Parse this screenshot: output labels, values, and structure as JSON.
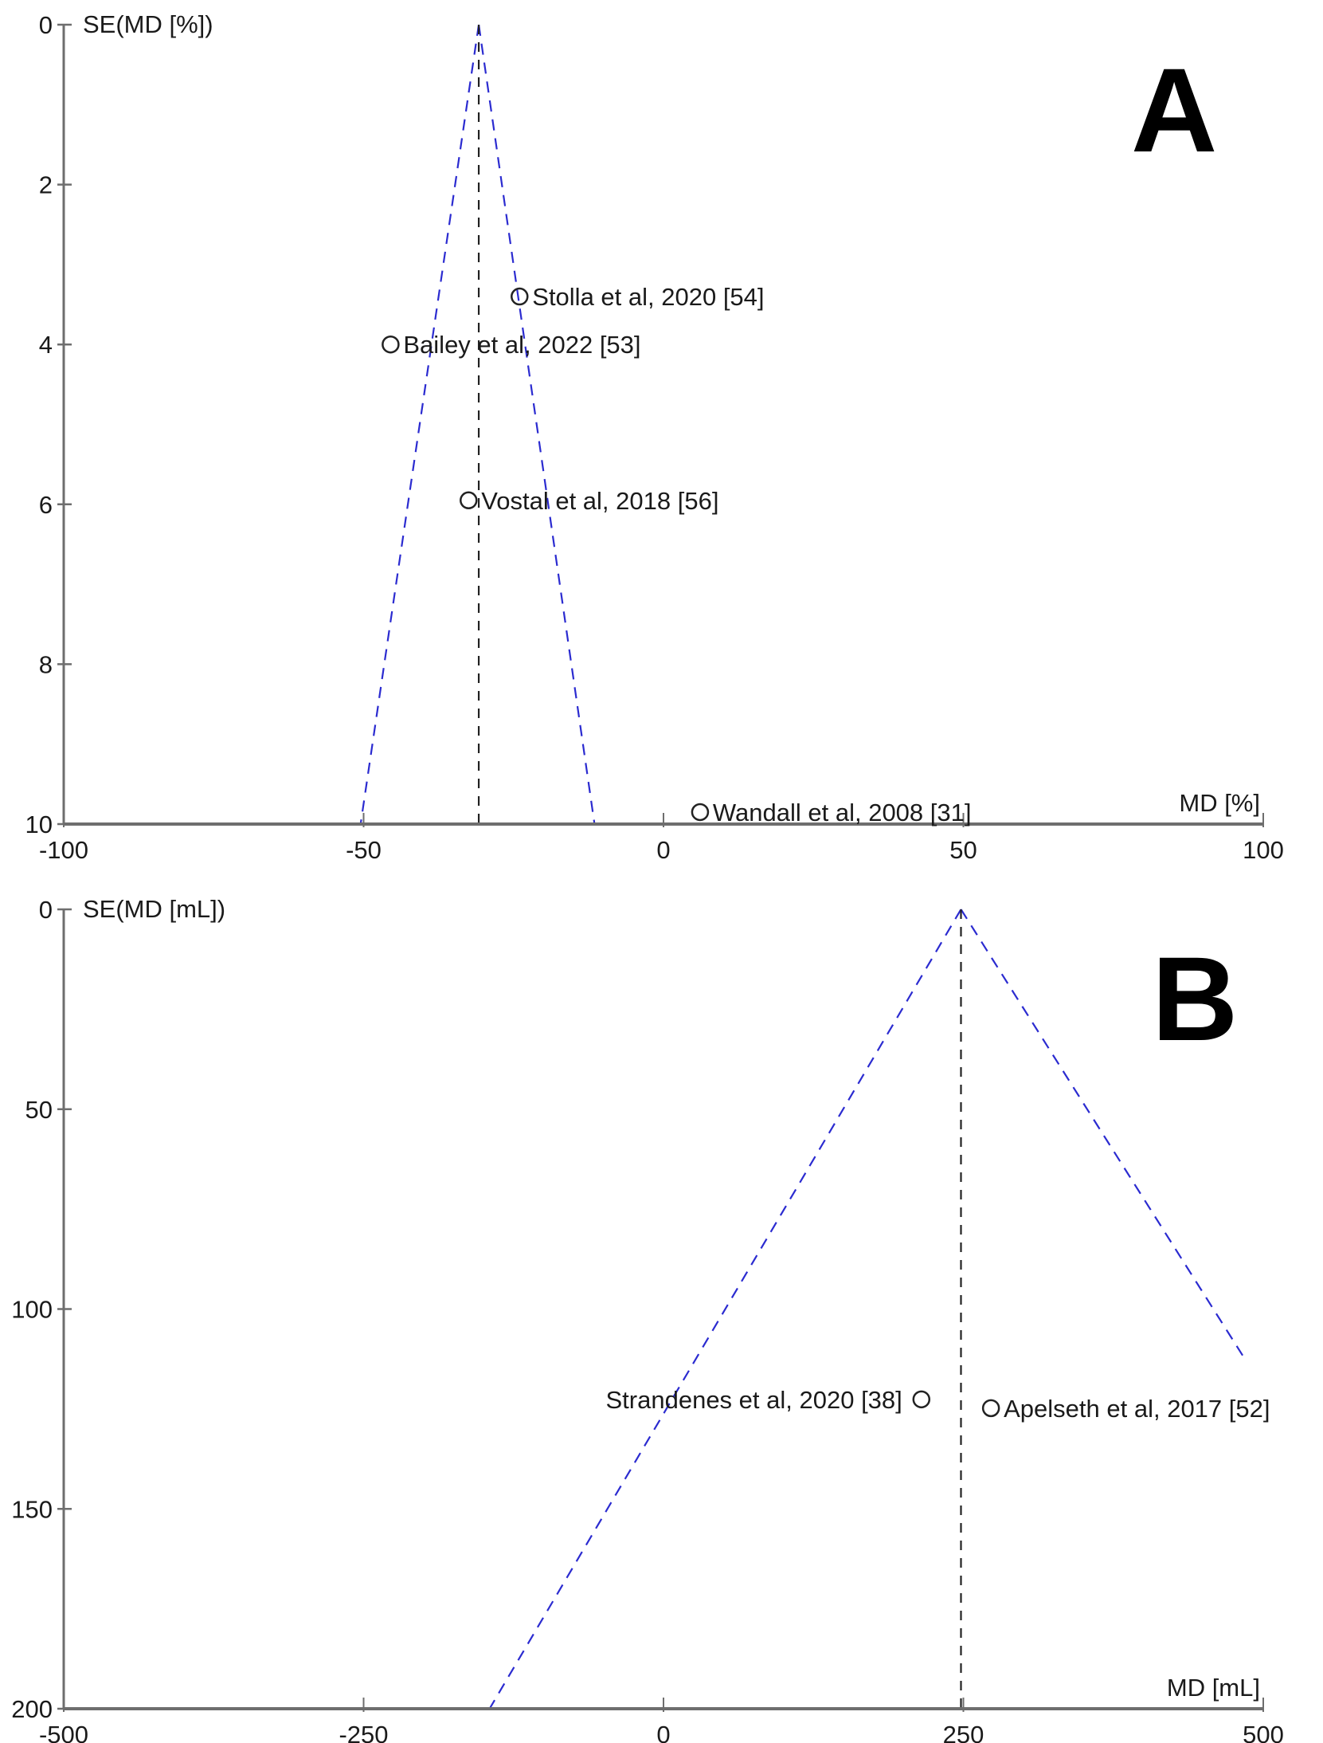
{
  "figure": {
    "panels": [
      {
        "id": "A",
        "letter": "A"
      },
      {
        "id": "B",
        "letter": "B"
      }
    ]
  },
  "colors": {
    "axis": "#6e6e6e",
    "funnel": "#2b2bd0",
    "summary_line": "#222222",
    "marker": "#222222",
    "text": "#1a1a1a"
  },
  "chart_data": [
    {
      "type": "scatter",
      "subtype": "funnel",
      "panel": "A",
      "title": "",
      "xlabel": "MD [%]",
      "ylabel": "SE(MD [%])",
      "xlim": [
        -100,
        100
      ],
      "ylim": [
        0,
        10
      ],
      "y_inverted": true,
      "grid": false,
      "x_ticks": [
        -100,
        -50,
        0,
        50,
        100
      ],
      "y_ticks": [
        0,
        2,
        4,
        6,
        8,
        10
      ],
      "summary_md": -30.8,
      "funnel": {
        "apex": [
          -30.8,
          0
        ],
        "left_base": [
          -50.5,
          10
        ],
        "right_base": [
          -11.5,
          10
        ]
      },
      "points": [
        {
          "label": "Stolla et al, 2020 [54]",
          "md": -24.0,
          "se": 3.4,
          "label_side": "right"
        },
        {
          "label": "Bailey et al, 2022 [53]",
          "md": -45.5,
          "se": 4.0,
          "label_side": "right"
        },
        {
          "label": "Vostal et al, 2018 [56]",
          "md": -32.5,
          "se": 5.95,
          "label_side": "right"
        },
        {
          "label": "Wandall et al, 2008 [31]",
          "md": 6.1,
          "se": 9.85,
          "label_side": "right"
        }
      ]
    },
    {
      "type": "scatter",
      "subtype": "funnel",
      "panel": "B",
      "title": "",
      "xlabel": "MD [mL]",
      "ylabel": "SE(MD [mL])",
      "xlim": [
        -500,
        500
      ],
      "ylim": [
        0,
        200
      ],
      "y_inverted": true,
      "grid": false,
      "x_ticks": [
        -500,
        -250,
        0,
        250,
        500
      ],
      "y_ticks": [
        0,
        50,
        100,
        150,
        200
      ],
      "summary_md": 248,
      "funnel": {
        "apex": [
          248,
          0
        ],
        "left_base": [
          -145,
          200
        ],
        "right_end": [
          483,
          111.7
        ]
      },
      "points": [
        {
          "label": "Strandenes et al, 2020 [38]",
          "md": 215,
          "se": 122.6,
          "label_side": "left"
        },
        {
          "label": "Apelseth et al, 2017 [52]",
          "md": 273,
          "se": 124.8,
          "label_side": "right"
        }
      ]
    }
  ]
}
